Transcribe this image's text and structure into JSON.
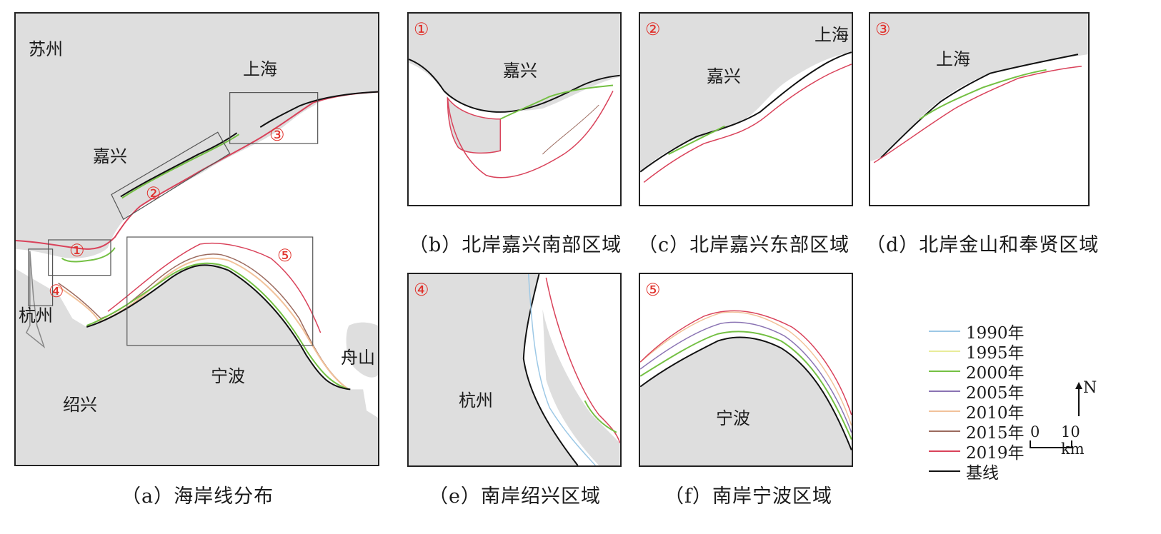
{
  "panels": {
    "a": {
      "places": {
        "suzhou": "苏州",
        "shanghai": "上海",
        "jiaxing": "嘉兴",
        "hangzhou": "杭州",
        "ningbo": "宁波",
        "shaoxing": "绍兴",
        "zhoushan": "舟山"
      },
      "region_numbers": [
        "①",
        "②",
        "③",
        "④",
        "⑤"
      ],
      "caption": "（a）海岸线分布"
    },
    "b": {
      "number": "①",
      "places": {
        "jiaxing": "嘉兴"
      },
      "caption": "（b）北岸嘉兴南部区域"
    },
    "c": {
      "number": "②",
      "places": {
        "jiaxing": "嘉兴",
        "shanghai": "上海"
      },
      "caption": "（c）北岸嘉兴东部区域"
    },
    "d": {
      "number": "③",
      "places": {
        "shanghai": "上海"
      },
      "caption": "（d）北岸金山和奉贤区域"
    },
    "e": {
      "number": "④",
      "places": {
        "hangzhou": "杭州"
      },
      "caption": "（e）南岸绍兴区域"
    },
    "f": {
      "number": "⑤",
      "places": {
        "ningbo": "宁波"
      },
      "caption": "（f）南岸宁波区域"
    }
  },
  "legend": [
    {
      "label": "1990年",
      "color": "#9cc8e6"
    },
    {
      "label": "1995年",
      "color": "#e8ec9a"
    },
    {
      "label": "2000年",
      "color": "#74c043"
    },
    {
      "label": "2005年",
      "color": "#8a73b3"
    },
    {
      "label": "2010年",
      "color": "#f2c29a"
    },
    {
      "label": "2015年",
      "color": "#9b6a5e"
    },
    {
      "label": "2019年",
      "color": "#d9425a"
    },
    {
      "label": "基线",
      "color": "#111111"
    }
  ],
  "north_label": "N",
  "scale": {
    "zero": "0",
    "distance": "10 km"
  }
}
